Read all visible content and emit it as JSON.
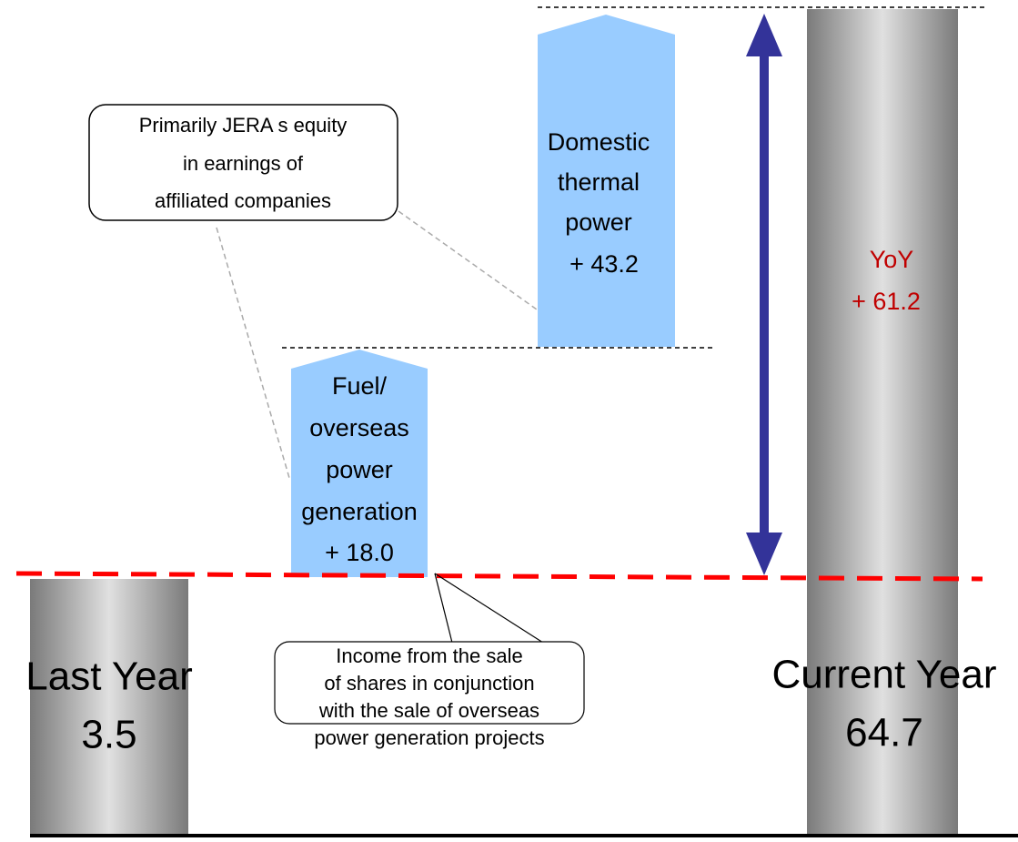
{
  "bars": [
    {
      "label": "Last Year",
      "value": "3.5"
    },
    {
      "label": "Current Year",
      "value": "64.7"
    }
  ],
  "steps": [
    {
      "lines": [
        "Fuel/",
        "overseas",
        "power",
        "generation"
      ],
      "value": "+ 18.0"
    },
    {
      "lines": [
        "Domestic",
        "thermal",
        "power"
      ],
      "value": "+ 43.2"
    }
  ],
  "yoy": {
    "label": "YoY",
    "value": "+ 61.2"
  },
  "callouts": [
    {
      "lines": [
        "Primarily JERA s equity",
        "in earnings of",
        "affiliated companies"
      ]
    },
    {
      "lines": [
        "Income from the sale",
        "of shares in conjunction",
        "with the sale of overseas",
        "power generation projects"
      ]
    }
  ]
}
